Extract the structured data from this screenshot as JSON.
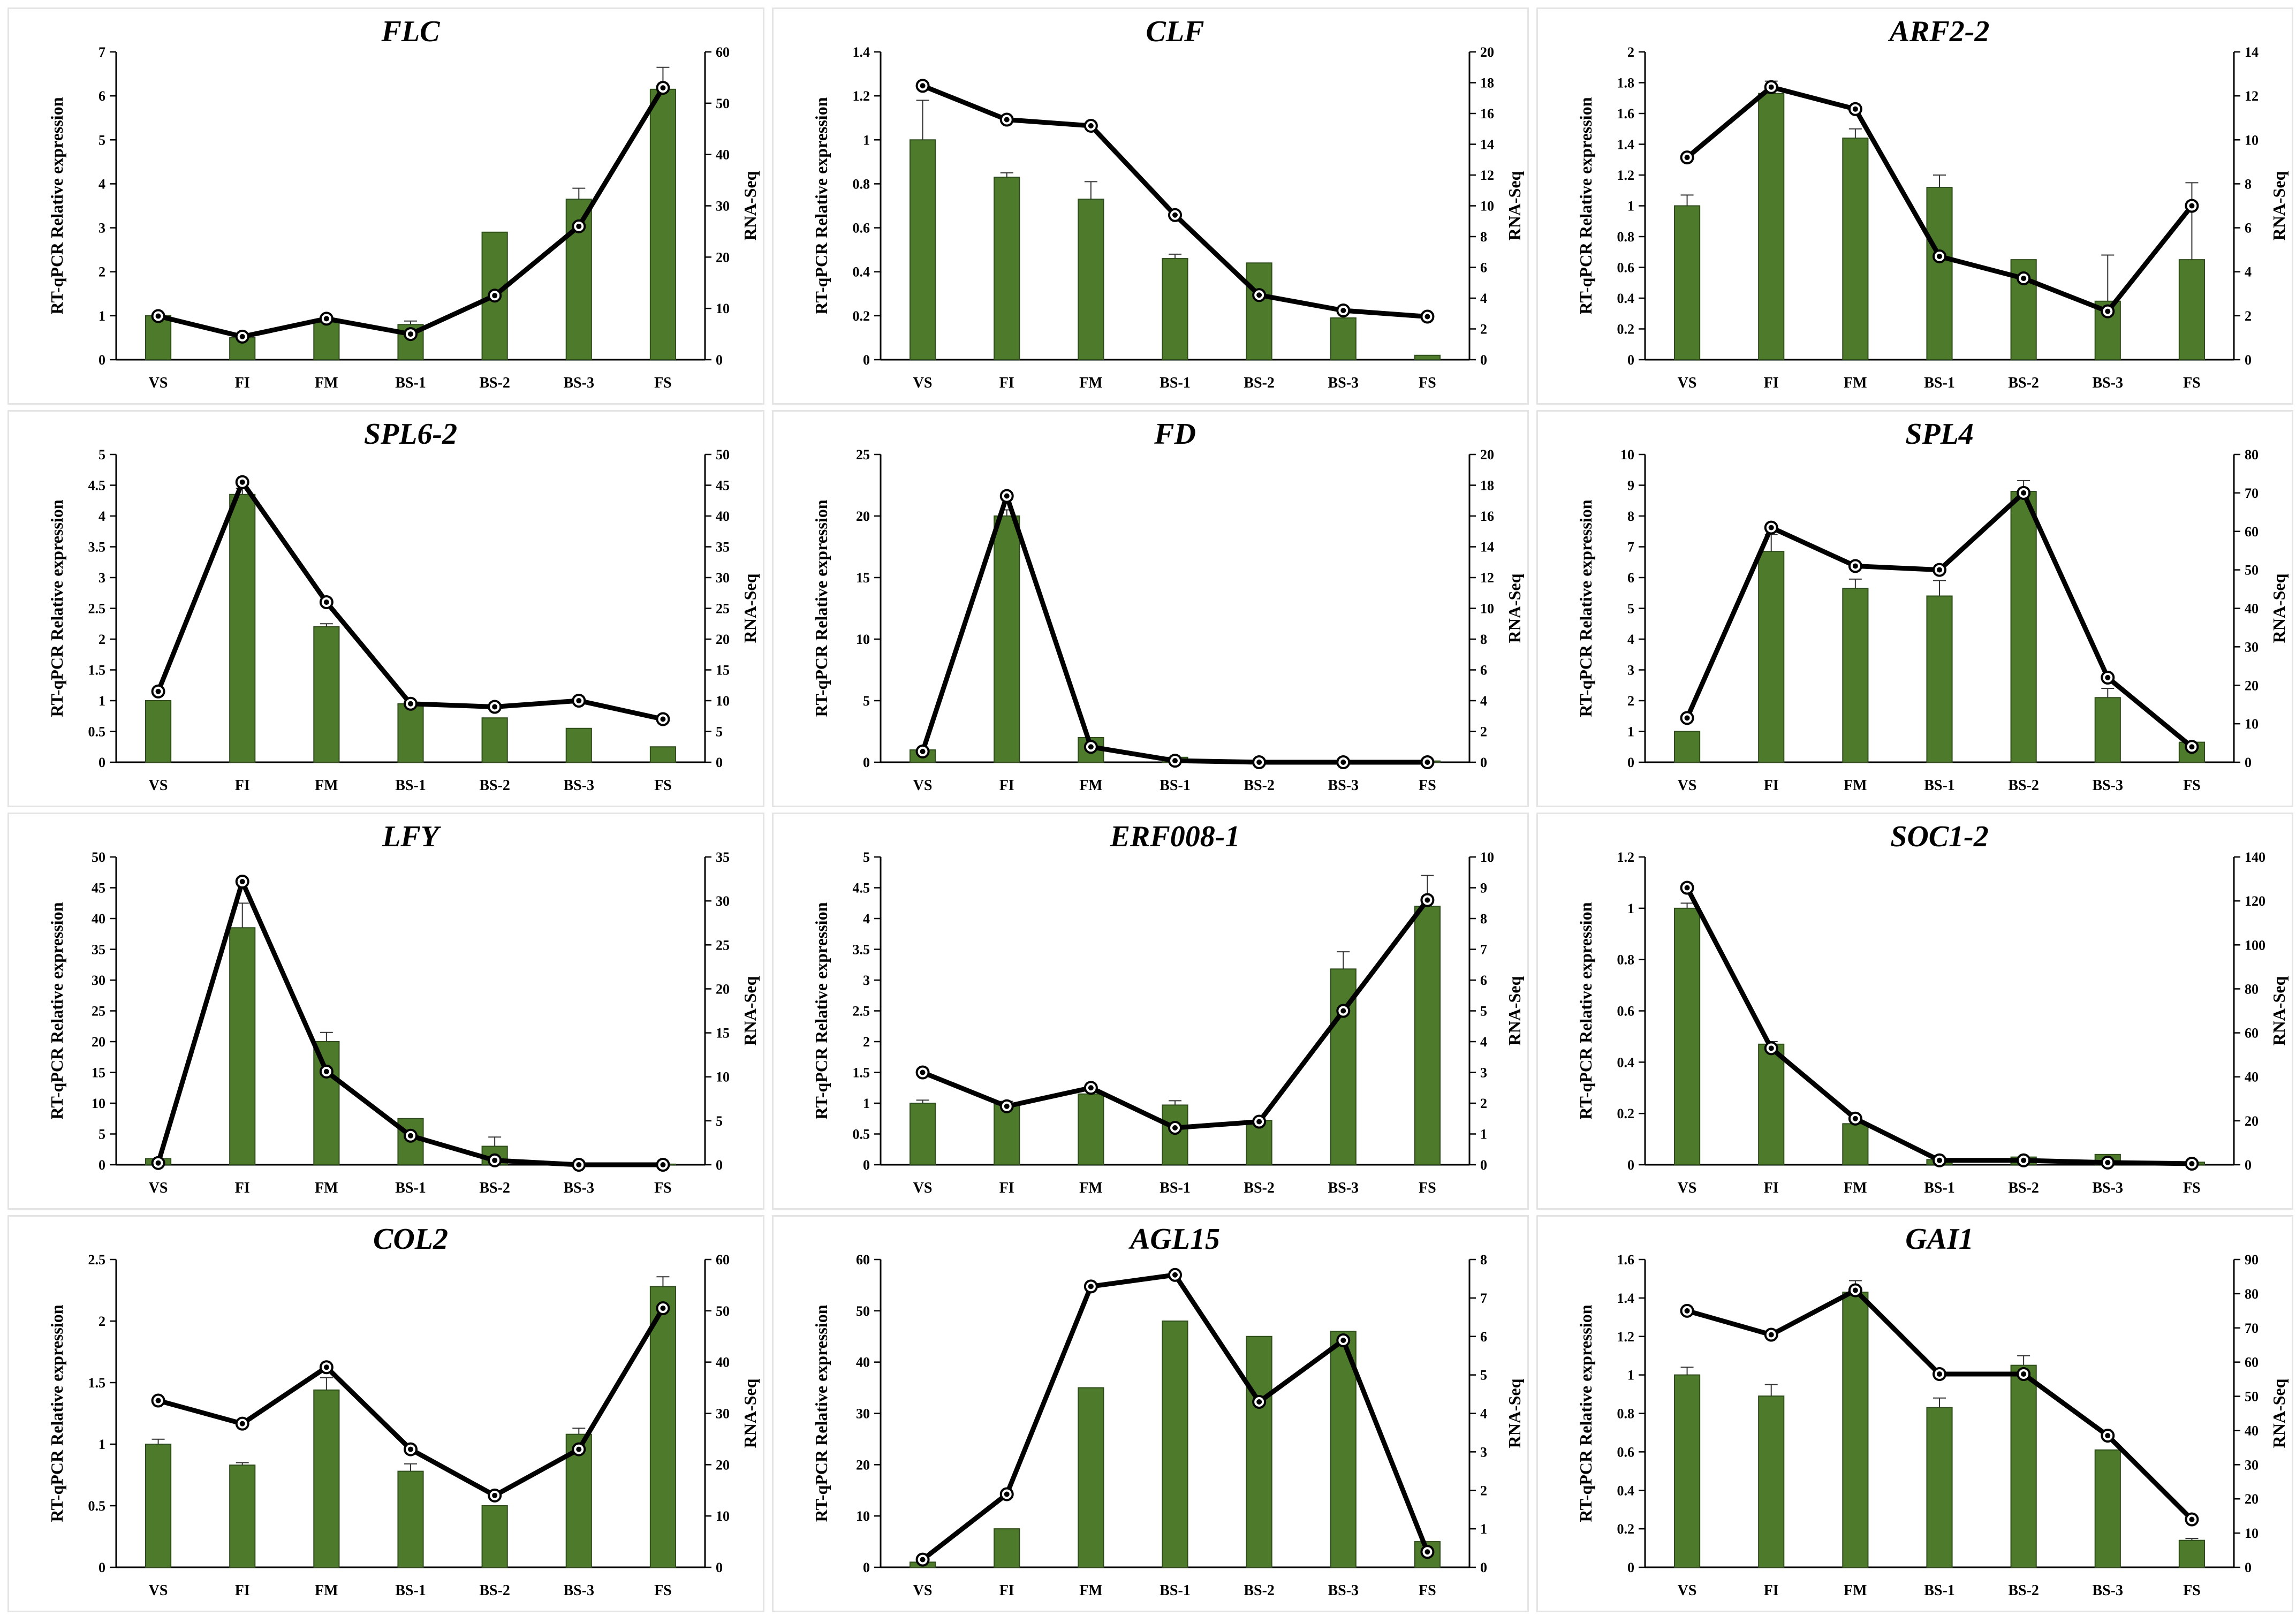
{
  "figure": {
    "categories": [
      "VS",
      "FI",
      "FM",
      "BS-1",
      "BS-2",
      "BS-3",
      "FS"
    ],
    "left_axis_label": "RT-qPCR Relative expression",
    "right_axis_label": "RNA-Seq",
    "bar_color": "#4e7a2c",
    "bar_edge_color": "#2e4d1a",
    "line_color": "#000000",
    "marker_fill": "#ffffff"
  },
  "chart_data": [
    {
      "type": "bar+line",
      "title": "FLC",
      "ylim_left": [
        0,
        7
      ],
      "left_ticks": [
        0,
        1,
        2,
        3,
        4,
        5,
        6,
        7
      ],
      "ylim_right": [
        0,
        60
      ],
      "right_ticks": [
        0,
        10,
        20,
        30,
        40,
        50,
        60
      ],
      "bars": [
        1,
        0.5,
        0.85,
        0.8,
        2.9,
        3.65,
        6.15
      ],
      "errors": [
        0.05,
        0.05,
        0.05,
        0.08,
        0,
        0.25,
        0.5
      ],
      "line": [
        8.5,
        4.5,
        8,
        5,
        12.5,
        26,
        53
      ]
    },
    {
      "type": "bar+line",
      "title": "CLF",
      "ylim_left": [
        0,
        1.4
      ],
      "left_ticks": [
        0,
        0.2,
        0.4,
        0.6,
        0.8,
        1,
        1.2,
        1.4
      ],
      "ylim_right": [
        0,
        20
      ],
      "right_ticks": [
        0,
        2,
        4,
        6,
        8,
        10,
        12,
        14,
        16,
        18,
        20
      ],
      "bars": [
        1,
        0.83,
        0.73,
        0.46,
        0.44,
        0.19,
        0.02
      ],
      "errors": [
        0.18,
        0.02,
        0.08,
        0.02,
        0,
        0,
        0
      ],
      "line": [
        17.8,
        15.6,
        15.2,
        9.4,
        4.2,
        3.2,
        2.8
      ]
    },
    {
      "type": "bar+line",
      "title": "ARF2-2",
      "ylim_left": [
        0,
        2
      ],
      "left_ticks": [
        0,
        0.2,
        0.4,
        0.6,
        0.8,
        1,
        1.2,
        1.4,
        1.6,
        1.8,
        2
      ],
      "ylim_right": [
        0,
        14
      ],
      "right_ticks": [
        0,
        2,
        4,
        6,
        8,
        10,
        12,
        14
      ],
      "bars": [
        1,
        1.73,
        1.44,
        1.12,
        0.65,
        0.38,
        0.65
      ],
      "errors": [
        0.07,
        0.08,
        0.06,
        0.08,
        0,
        0.3,
        0.5
      ],
      "line": [
        9.2,
        12.4,
        11.4,
        4.7,
        3.7,
        2.2,
        7
      ]
    },
    {
      "type": "bar+line",
      "title": "SPL6-2",
      "ylim_left": [
        0,
        5
      ],
      "left_ticks": [
        0,
        0.5,
        1,
        1.5,
        2,
        2.5,
        3,
        3.5,
        4,
        4.5,
        5
      ],
      "ylim_right": [
        0,
        50
      ],
      "right_ticks": [
        0,
        5,
        10,
        15,
        20,
        25,
        30,
        35,
        40,
        45,
        50
      ],
      "bars": [
        1,
        4.35,
        2.2,
        0.95,
        0.72,
        0.55,
        0.25
      ],
      "errors": [
        0,
        0.1,
        0.05,
        0,
        0,
        0,
        0
      ],
      "line": [
        11.5,
        45.5,
        26,
        9.5,
        9,
        10,
        7
      ]
    },
    {
      "type": "bar+line",
      "title": "FD",
      "ylim_left": [
        0,
        25
      ],
      "left_ticks": [
        0,
        5,
        10,
        15,
        20,
        25
      ],
      "ylim_right": [
        0,
        20
      ],
      "right_ticks": [
        0,
        2,
        4,
        6,
        8,
        10,
        12,
        14,
        16,
        18,
        20
      ],
      "bars": [
        1,
        20,
        2,
        0.4,
        0.1,
        0.05,
        0.1
      ],
      "errors": [
        0,
        0.5,
        0,
        0,
        0,
        0,
        0
      ],
      "line": [
        0.7,
        17.3,
        1,
        0.1,
        0,
        0,
        0
      ]
    },
    {
      "type": "bar+line",
      "title": "SPL4",
      "ylim_left": [
        0,
        10
      ],
      "left_ticks": [
        0,
        1,
        2,
        3,
        4,
        5,
        6,
        7,
        8,
        9,
        10
      ],
      "ylim_right": [
        0,
        80
      ],
      "right_ticks": [
        0,
        10,
        20,
        30,
        40,
        50,
        60,
        70,
        80
      ],
      "bars": [
        1,
        6.85,
        5.65,
        5.4,
        8.8,
        2.1,
        0.65
      ],
      "errors": [
        0,
        0.55,
        0.3,
        0.5,
        0.35,
        0.3,
        0
      ],
      "line": [
        11.5,
        61,
        51,
        50,
        70,
        22,
        4
      ]
    },
    {
      "type": "bar+line",
      "title": "LFY",
      "ylim_left": [
        0,
        50
      ],
      "left_ticks": [
        0,
        5,
        10,
        15,
        20,
        25,
        30,
        35,
        40,
        45,
        50
      ],
      "ylim_right": [
        0,
        35
      ],
      "right_ticks": [
        0,
        5,
        10,
        15,
        20,
        25,
        30,
        35
      ],
      "bars": [
        1,
        38.5,
        20,
        7.5,
        3,
        0.3,
        0.1
      ],
      "errors": [
        0,
        4,
        1.5,
        0,
        1.5,
        0,
        0
      ],
      "line": [
        0.2,
        32.2,
        10.6,
        3.3,
        0.5,
        0,
        0
      ]
    },
    {
      "type": "bar+line",
      "title": "ERF008-1",
      "ylim_left": [
        0,
        5
      ],
      "left_ticks": [
        0,
        0.5,
        1,
        1.5,
        2,
        2.5,
        3,
        3.5,
        4,
        4.5,
        5
      ],
      "ylim_right": [
        0,
        10
      ],
      "right_ticks": [
        0,
        1,
        2,
        3,
        4,
        5,
        6,
        7,
        8,
        9,
        10
      ],
      "bars": [
        1,
        0.98,
        1.15,
        0.97,
        0.72,
        3.18,
        4.2
      ],
      "errors": [
        0.05,
        0.05,
        0.05,
        0.07,
        0,
        0.28,
        0.5
      ],
      "line": [
        3,
        1.9,
        2.5,
        1.2,
        1.4,
        5,
        8.6
      ]
    },
    {
      "type": "bar+line",
      "title": "SOC1-2",
      "ylim_left": [
        0,
        1.2
      ],
      "left_ticks": [
        0,
        0.2,
        0.4,
        0.6,
        0.8,
        1,
        1.2
      ],
      "ylim_right": [
        0,
        140
      ],
      "right_ticks": [
        0,
        20,
        40,
        60,
        80,
        100,
        120,
        140
      ],
      "bars": [
        1,
        0.47,
        0.16,
        0.02,
        0.03,
        0.04,
        0.01
      ],
      "errors": [
        0.02,
        0.01,
        0,
        0,
        0,
        0,
        0
      ],
      "line": [
        126,
        53,
        21,
        2,
        2,
        1,
        0.5
      ]
    },
    {
      "type": "bar+line",
      "title": "COL2",
      "ylim_left": [
        0,
        2.5
      ],
      "left_ticks": [
        0,
        0.5,
        1,
        1.5,
        2,
        2.5
      ],
      "ylim_right": [
        0,
        60
      ],
      "right_ticks": [
        0,
        10,
        20,
        30,
        40,
        50,
        60
      ],
      "bars": [
        1,
        0.83,
        1.44,
        0.78,
        0.5,
        1.08,
        2.28
      ],
      "errors": [
        0.04,
        0.02,
        0.1,
        0.06,
        0,
        0.05,
        0.08
      ],
      "line": [
        32.5,
        28,
        39,
        23,
        14,
        23,
        50.5
      ]
    },
    {
      "type": "bar+line",
      "title": "AGL15",
      "ylim_left": [
        0,
        60
      ],
      "left_ticks": [
        0,
        10,
        20,
        30,
        40,
        50,
        60
      ],
      "ylim_right": [
        0,
        8
      ],
      "right_ticks": [
        0,
        1,
        2,
        3,
        4,
        5,
        6,
        7,
        8
      ],
      "bars": [
        1,
        7.5,
        35,
        48,
        45,
        46,
        5
      ],
      "errors": [
        0,
        0,
        0,
        0,
        0,
        0,
        0
      ],
      "line": [
        0.2,
        1.9,
        7.3,
        7.6,
        4.3,
        5.9,
        0.4
      ]
    },
    {
      "type": "bar+line",
      "title": "GAI1",
      "ylim_left": [
        0,
        1.6
      ],
      "left_ticks": [
        0,
        0.2,
        0.4,
        0.6,
        0.8,
        1,
        1.2,
        1.4,
        1.6
      ],
      "ylim_right": [
        0,
        90
      ],
      "right_ticks": [
        0,
        10,
        20,
        30,
        40,
        50,
        60,
        70,
        80,
        90
      ],
      "bars": [
        1,
        0.89,
        1.43,
        0.83,
        1.05,
        0.61,
        0.14
      ],
      "errors": [
        0.04,
        0.06,
        0.06,
        0.05,
        0.05,
        0,
        0.01
      ],
      "line": [
        75,
        68,
        81,
        56.5,
        56.5,
        38.5,
        14
      ]
    }
  ]
}
